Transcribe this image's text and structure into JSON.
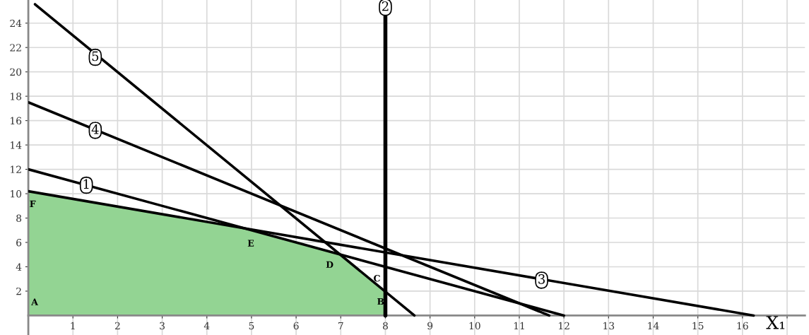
{
  "chart_data": {
    "type": "line",
    "xlabel": "X₁",
    "series": [
      {
        "type": "area",
        "color": "#93d493",
        "x": [
          0,
          0,
          5,
          7,
          8,
          8
        ],
        "values": [
          0,
          10.2,
          7,
          5,
          2,
          0
        ],
        "value_labels": [
          "A",
          "F",
          "E",
          "D",
          "C",
          "B"
        ]
      },
      {
        "color": "#000000",
        "x": [
          0,
          12
        ],
        "values": [
          12,
          0
        ]
      },
      {
        "color": "#000000",
        "x": [
          8,
          8
        ],
        "values": [
          0,
          25.9
        ]
      },
      {
        "color": "#000000",
        "x": [
          0,
          16.25
        ],
        "values": [
          10.2,
          0
        ]
      },
      {
        "color": "#000000",
        "x": [
          0,
          11.67
        ],
        "values": [
          17.5,
          0
        ]
      },
      {
        "color": "#000000",
        "x": [
          0.15,
          8.65
        ],
        "values": [
          25.55,
          0
        ]
      }
    ],
    "annotations": [
      {
        "text": "1",
        "x": 1.3,
        "y": 10.7
      },
      {
        "text": "2",
        "x": 8,
        "y": 25.3
      },
      {
        "text": "3",
        "x": 11.5,
        "y": 2.9
      },
      {
        "text": "4",
        "x": 1.5,
        "y": 15.2
      },
      {
        "text": "5",
        "x": 1.5,
        "y": 21.2
      }
    ],
    "xlim": [
      0,
      17.4
    ],
    "ylim": [
      -1.6,
      25.9
    ],
    "xticks": [
      1,
      2,
      3,
      4,
      5,
      6,
      7,
      8,
      9,
      10,
      11,
      12,
      13,
      14,
      15,
      16,
      {
        "value": 17,
        "label": null
      }
    ],
    "yticks": [
      2,
      4,
      6,
      8,
      10,
      12,
      14,
      16,
      18,
      20,
      22,
      24
    ],
    "grid": true,
    "legend": false,
    "marker": "none",
    "line_style": "solid"
  }
}
